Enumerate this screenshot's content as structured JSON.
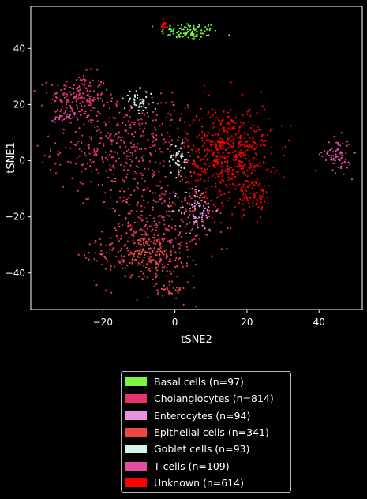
{
  "chart_data": {
    "type": "scatter",
    "xlabel": "tSNE2",
    "ylabel": "tSNE1",
    "xlim": [
      -40,
      52
    ],
    "ylim": [
      -53,
      55
    ],
    "x_ticks": [
      -20,
      0,
      20,
      40
    ],
    "y_ticks": [
      -40,
      -20,
      0,
      20,
      40
    ],
    "x_tick_labels": [
      "−20",
      "0",
      "20",
      "40"
    ],
    "y_tick_labels": [
      "−40",
      "−20",
      "0",
      "20",
      "40"
    ],
    "grid": false,
    "legend_position": "below",
    "series": [
      {
        "name": "Basal cells (n=97)",
        "color": "#7cf542",
        "count": 97,
        "clusters": [
          {
            "center": [
              4,
              46
            ],
            "spread": [
              4,
              1.6
            ],
            "weight": 1
          }
        ]
      },
      {
        "name": "Cholangiocytes (n=814)",
        "color": "#e4356c",
        "count": 814,
        "clusters": [
          {
            "center": [
              -27,
              23
            ],
            "spread": [
              4,
              4
            ],
            "weight": 0.22
          },
          {
            "center": [
              -18,
              5
            ],
            "spread": [
              8,
              8
            ],
            "weight": 0.33
          },
          {
            "center": [
              -5,
              8
            ],
            "spread": [
              6,
              8
            ],
            "weight": 0.15
          },
          {
            "center": [
              -5,
              -25
            ],
            "spread": [
              8,
              10
            ],
            "weight": 0.3
          }
        ]
      },
      {
        "name": "Enterocytes (n=94)",
        "color": "#e693e0",
        "count": 94,
        "clusters": [
          {
            "center": [
              6,
              -17
            ],
            "spread": [
              2.5,
              4
            ],
            "weight": 1
          }
        ]
      },
      {
        "name": "Epithelial cells (n=341)",
        "color": "#ee4545",
        "count": 341,
        "clusters": [
          {
            "center": [
              -8,
              -33
            ],
            "spread": [
              7,
              4
            ],
            "weight": 0.7
          },
          {
            "center": [
              -1,
              -46
            ],
            "spread": [
              2,
              1.3
            ],
            "weight": 0.1
          },
          {
            "center": [
              -10,
              -15
            ],
            "spread": [
              6,
              7
            ],
            "weight": 0.2
          }
        ]
      },
      {
        "name": "Goblet cells (n=93)",
        "color": "#d6f5ea",
        "count": 93,
        "clusters": [
          {
            "center": [
              -10,
              21
            ],
            "spread": [
              2,
              2
            ],
            "weight": 0.5
          },
          {
            "center": [
              1,
              1
            ],
            "spread": [
              1.5,
              3
            ],
            "weight": 0.5
          }
        ]
      },
      {
        "name": "T cells (n=109)",
        "color": "#e04ca6",
        "count": 109,
        "clusters": [
          {
            "center": [
              45,
              2
            ],
            "spread": [
              2,
              3
            ],
            "weight": 0.7
          },
          {
            "center": [
              -30,
              16
            ],
            "spread": [
              2,
              1.2
            ],
            "weight": 0.3
          }
        ]
      },
      {
        "name": "Unknown (n=614)",
        "color": "#ff0000",
        "count": 614,
        "clusters": [
          {
            "center": [
              15,
              2
            ],
            "spread": [
              6,
              9
            ],
            "weight": 0.9
          },
          {
            "center": [
              -3,
              48
            ],
            "spread": [
              0.6,
              1
            ],
            "weight": 0.03
          },
          {
            "center": [
              22,
              -13
            ],
            "spread": [
              2,
              2
            ],
            "weight": 0.07
          }
        ]
      }
    ]
  }
}
